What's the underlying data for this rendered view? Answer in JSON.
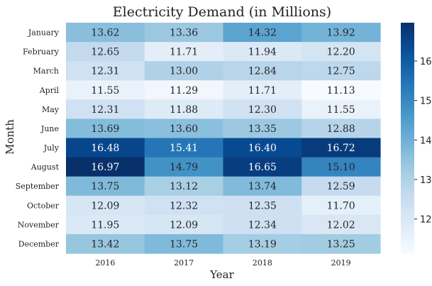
{
  "chart_data": {
    "type": "heatmap",
    "title": "Electricity Demand (in Millions)",
    "xlabel": "Year",
    "ylabel": "Month",
    "columns": [
      "2016",
      "2017",
      "2018",
      "2019"
    ],
    "rows": [
      "January",
      "February",
      "March",
      "April",
      "May",
      "June",
      "July",
      "August",
      "September",
      "October",
      "November",
      "December"
    ],
    "values": [
      [
        13.62,
        13.36,
        14.32,
        13.92
      ],
      [
        12.65,
        11.71,
        11.94,
        12.2
      ],
      [
        12.31,
        13.0,
        12.84,
        12.75
      ],
      [
        11.55,
        11.29,
        11.71,
        11.13
      ],
      [
        12.31,
        11.88,
        12.3,
        11.55
      ],
      [
        13.69,
        13.6,
        13.35,
        12.88
      ],
      [
        16.48,
        15.41,
        16.4,
        16.72
      ],
      [
        16.97,
        14.79,
        16.65,
        15.1
      ],
      [
        13.75,
        13.12,
        13.74,
        12.59
      ],
      [
        12.09,
        12.32,
        12.35,
        11.7
      ],
      [
        11.95,
        12.09,
        12.34,
        12.02
      ],
      [
        13.42,
        13.75,
        13.19,
        13.25
      ]
    ],
    "value_format": "2 decimals",
    "colormap": "Blues",
    "vmin": 11.13,
    "vmax": 16.97,
    "colorbar_ticks": [
      12,
      13,
      14,
      15,
      16
    ],
    "colorbar_placement": "right",
    "grid": false
  }
}
